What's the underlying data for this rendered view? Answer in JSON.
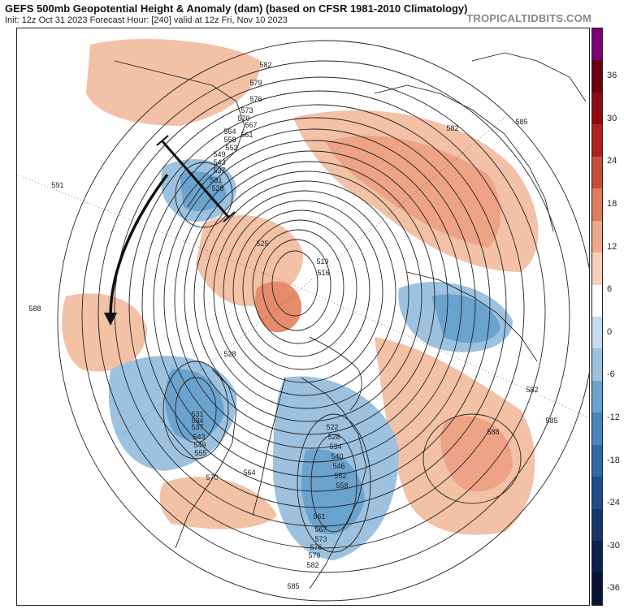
{
  "header": {
    "title": "GEFS 500mb Geopotential Height & Anomaly (dam) (based on CFSR 1981-2010 Climatology)",
    "subtitle": "Init: 12z Oct 31 2023   Forecast Hour: [240]   valid at 12z Fri, Nov 10 2023",
    "brand": "TROPICALTIDBITS.COM"
  },
  "colorbar": {
    "ticks": [
      "36",
      "30",
      "24",
      "18",
      "12",
      "6",
      "0",
      "-6",
      "-12",
      "-18",
      "-24",
      "-30",
      "-36"
    ],
    "colors": [
      "#7a0078",
      "#6b0010",
      "#8e0a12",
      "#b02020",
      "#c8503a",
      "#dc7e5e",
      "#ecaa8a",
      "#f6d2bc",
      "#ffffff",
      "#c8dced",
      "#9cc2e0",
      "#6ba3cf",
      "#4a86be",
      "#2f6aa6",
      "#1d4d8a",
      "#15356b",
      "#0e2050",
      "#081433"
    ]
  },
  "contour_labels": [
    "582",
    "579",
    "576",
    "573",
    "570",
    "567",
    "564",
    "561",
    "558",
    "552",
    "549",
    "543",
    "537",
    "531",
    "528",
    "525",
    "519",
    "516",
    "591",
    "588",
    "585",
    "582",
    "588",
    "585",
    "582",
    "528",
    "531",
    "534",
    "537",
    "543",
    "549",
    "555",
    "564",
    "570",
    "522",
    "528",
    "534",
    "540",
    "546",
    "552",
    "558",
    "561",
    "567",
    "573",
    "576",
    "579",
    "582",
    "585"
  ],
  "icons": {
    "arrow": "curved-flow-arrow-icon",
    "axis": "trough-axis-line-icon"
  }
}
